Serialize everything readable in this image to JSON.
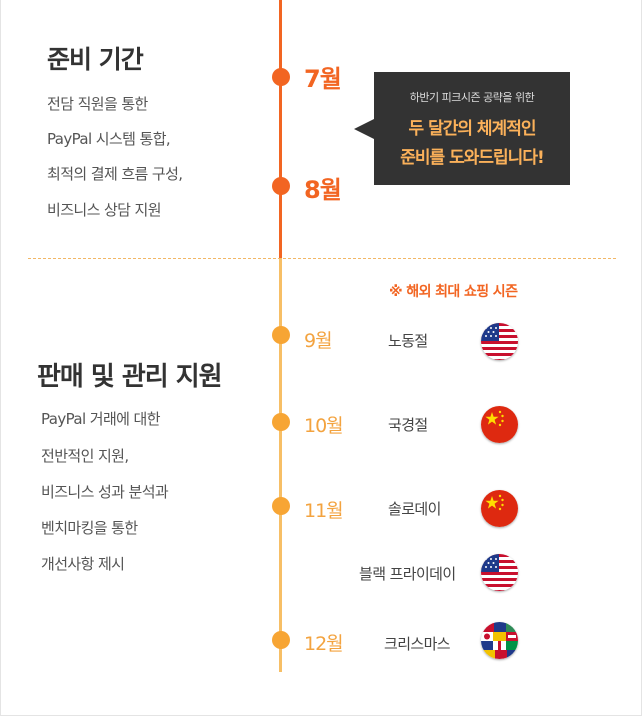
{
  "prep": {
    "title": "준비 기간",
    "desc": [
      "전담 직원을 통한",
      "PayPal 시스템 통합,",
      "최적의 결제 흐름 구성,",
      "비즈니스 상담 지원"
    ]
  },
  "sales": {
    "title": "판매 및 관리 지원",
    "desc": [
      "PayPal 거래에 대한",
      "전반적인 지원,",
      "비즈니스 성과 분석과",
      "벤치마킹을 통한",
      "개선사항 제시"
    ]
  },
  "timeline": {
    "prep_months": [
      "7월",
      "8월"
    ],
    "sales_months": [
      "9월",
      "10월",
      "11월",
      "12월"
    ]
  },
  "callout": {
    "sub": "하반기 피크시즌 공략을 위한",
    "main_line1": "두 달간의 체계적인",
    "main_line2": "준비를 도와드립니다!"
  },
  "season": {
    "note": "※ 해외 최대 쇼핑 시즌",
    "events": [
      {
        "name": "노동절",
        "flag": "us-flag-icon"
      },
      {
        "name": "국경절",
        "flag": "china-flag-icon"
      },
      {
        "name": "솔로데이",
        "flag": "china-flag-icon"
      },
      {
        "name": "블랙 프라이데이",
        "flag": "us-flag-icon"
      },
      {
        "name": "크리스마스",
        "flag": "world-flags-icon"
      }
    ]
  },
  "colors": {
    "accent": "#f26522",
    "accent_light": "#f7a534",
    "callout_bg": "#333333",
    "callout_text": "#fbb15a"
  }
}
